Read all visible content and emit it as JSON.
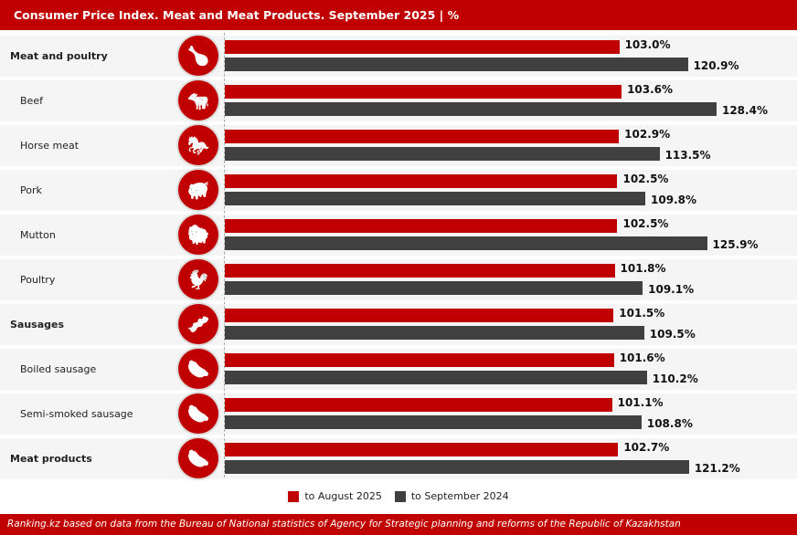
{
  "header": {
    "title": "Consumer Price Index. Meat and Meat Products. September 2025 | %"
  },
  "chart_data": {
    "type": "bar",
    "orientation": "horizontal",
    "categories": [
      "Meat and poultry",
      "Beef",
      "Horse meat",
      "Pork",
      "Mutton",
      "Poultry",
      "Sausages",
      "Boiled sausage",
      "Semi-smoked sausage",
      "Meat products"
    ],
    "category_level": [
      "group",
      "item",
      "item",
      "item",
      "item",
      "item",
      "group",
      "item",
      "item",
      "group"
    ],
    "icons": [
      "meat-poultry-icon",
      "cow-icon",
      "horse-icon",
      "pig-icon",
      "sheep-icon",
      "chicken-icon",
      "sausage-icon",
      "boiled-sausage-icon",
      "semi-smoked-sausage-icon",
      "sausage-link-icon"
    ],
    "series": [
      {
        "name": "to August 2025",
        "color": "#c00000",
        "values": [
          103.0,
          103.6,
          102.9,
          102.5,
          102.5,
          101.8,
          101.5,
          101.6,
          101.1,
          102.7
        ],
        "labels": [
          "103.0%",
          "103.6%",
          "102.9%",
          "102.5%",
          "102.5%",
          "101.8%",
          "101.5%",
          "101.6%",
          "101.1%",
          "102.7%"
        ]
      },
      {
        "name": "to September 2024",
        "color": "#404040",
        "values": [
          120.9,
          128.4,
          113.5,
          109.8,
          125.9,
          109.1,
          109.5,
          110.2,
          108.8,
          121.2
        ],
        "labels": [
          "120.9%",
          "128.4%",
          "113.5%",
          "109.8%",
          "125.9%",
          "109.1%",
          "109.5%",
          "110.2%",
          "108.8%",
          "121.2%"
        ]
      }
    ],
    "xlim": [
      0,
      140
    ],
    "legend_position": "bottom-center",
    "grid": false
  },
  "legend": {
    "a": "to August 2025",
    "b": "to September 2024"
  },
  "footer": {
    "source": "Ranking.kz based on data from the Bureau of National statistics of Agency for Strategic planning and reforms of the Republic of Kazakhstan"
  }
}
